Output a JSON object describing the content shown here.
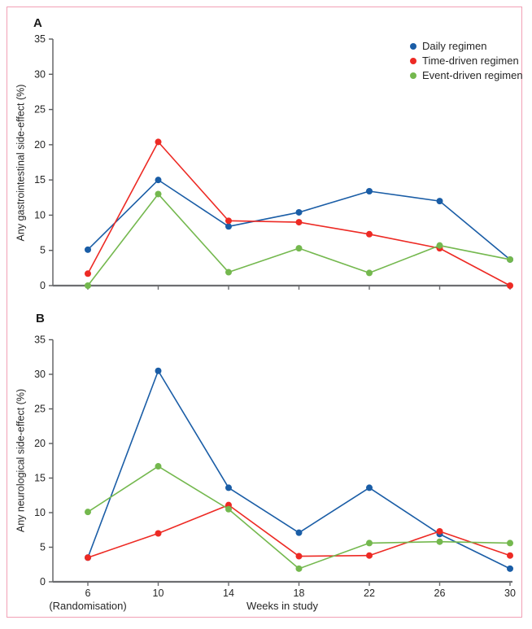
{
  "labels": {
    "panel_a": "A",
    "panel_b": "B",
    "x_axis": "Weeks in study",
    "randomisation": "(Randomisation)"
  },
  "legend": {
    "position": "top-right",
    "items": [
      {
        "label": "Daily regimen",
        "color": "#1a5da6"
      },
      {
        "label": "Time-driven regimen",
        "color": "#ed2a24"
      },
      {
        "label": "Event-driven regimen",
        "color": "#74b84e"
      }
    ]
  },
  "colors": {
    "frame_border": "#f2a0b5",
    "x_axis_line": "#6d6e71",
    "y_axis_line": "#5b5c5e",
    "tick_text": "#262626"
  },
  "chart_data": [
    {
      "type": "line",
      "panel": "A",
      "title": "",
      "ylabel": "Any gastrointestinal side-effect (%)",
      "xlabel": "Weeks in study",
      "x": [
        6,
        10,
        14,
        18,
        22,
        26,
        30
      ],
      "xticklabels": [
        "6",
        "10",
        "14",
        "18",
        "22",
        "26",
        "30"
      ],
      "show_x_tick_labels": false,
      "ylim": [
        0,
        35
      ],
      "yticks": [
        0,
        5,
        10,
        15,
        20,
        25,
        30,
        35
      ],
      "grid": false,
      "legend_position": "top-right",
      "series": [
        {
          "name": "Daily regimen",
          "color": "#1a5da6",
          "values": [
            5.1,
            15.0,
            8.4,
            10.4,
            13.4,
            12.0,
            3.7
          ]
        },
        {
          "name": "Time-driven regimen",
          "color": "#ed2a24",
          "values": [
            1.7,
            20.4,
            9.2,
            9.0,
            7.3,
            5.3,
            0.0
          ]
        },
        {
          "name": "Event-driven regimen",
          "color": "#74b84e",
          "values": [
            0.0,
            13.0,
            1.9,
            5.3,
            1.8,
            5.7,
            3.7
          ]
        }
      ]
    },
    {
      "type": "line",
      "panel": "B",
      "title": "",
      "ylabel": "Any neurological side-effect (%)",
      "xlabel": "Weeks in study",
      "x": [
        6,
        10,
        14,
        18,
        22,
        26,
        30
      ],
      "xticklabels": [
        "6",
        "10",
        "14",
        "18",
        "22",
        "26",
        "30"
      ],
      "show_x_tick_labels": true,
      "ylim": [
        0,
        35
      ],
      "yticks": [
        0,
        5,
        10,
        15,
        20,
        25,
        30,
        35
      ],
      "grid": false,
      "series": [
        {
          "name": "Daily regimen",
          "color": "#1a5da6",
          "values": [
            3.5,
            30.5,
            13.6,
            7.1,
            13.6,
            6.9,
            1.9
          ]
        },
        {
          "name": "Time-driven regimen",
          "color": "#ed2a24",
          "values": [
            3.5,
            7.0,
            11.1,
            3.7,
            3.8,
            7.3,
            3.8
          ]
        },
        {
          "name": "Event-driven regimen",
          "color": "#74b84e",
          "values": [
            10.1,
            16.7,
            10.5,
            1.9,
            5.6,
            5.8,
            5.6
          ]
        }
      ]
    }
  ]
}
